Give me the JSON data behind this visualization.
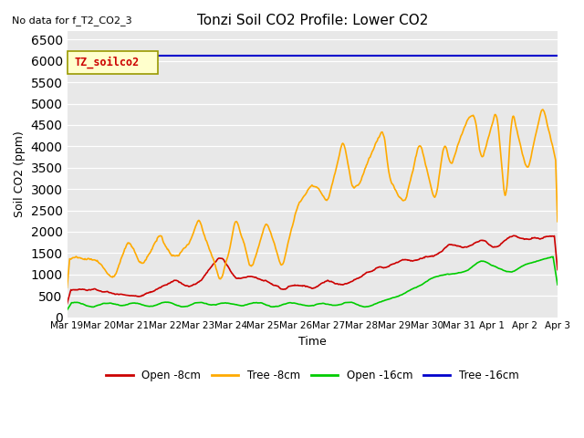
{
  "title": "Tonzi Soil CO2 Profile: Lower CO2",
  "no_data_text": "No data for f_T2_CO2_3",
  "ylabel": "Soil CO2 (ppm)",
  "xlabel": "Time",
  "ylim": [
    0,
    6700
  ],
  "yticks": [
    0,
    500,
    1000,
    1500,
    2000,
    2500,
    3000,
    3500,
    4000,
    4500,
    5000,
    5500,
    6000,
    6500
  ],
  "bg_color": "#e8e8e8",
  "legend_label": "TZ_soilco2",
  "legend_bg": "#ffffcc",
  "legend_border": "#999900",
  "series": {
    "open_8cm": {
      "label": "Open -8cm",
      "color": "#cc0000",
      "linewidth": 1.2
    },
    "tree_8cm": {
      "label": "Tree -8cm",
      "color": "#ffaa00",
      "linewidth": 1.2
    },
    "open_16cm": {
      "label": "Open -16cm",
      "color": "#00cc00",
      "linewidth": 1.2
    },
    "tree_16cm": {
      "label": "Tree -16cm",
      "color": "#0000cc",
      "linewidth": 1.5
    }
  },
  "xtick_labels": [
    "Mar 19",
    "Mar 20",
    "Mar 21",
    "Mar 22",
    "Mar 23",
    "Mar 24",
    "Mar 25",
    "Mar 26",
    "Mar 27",
    "Mar 28",
    "Mar 29",
    "Mar 30",
    "Mar 31",
    "Apr 1",
    "Apr 2",
    "Apr 3"
  ],
  "tree_16cm_value": 6120,
  "figsize": [
    6.4,
    4.8
  ],
  "dpi": 100
}
